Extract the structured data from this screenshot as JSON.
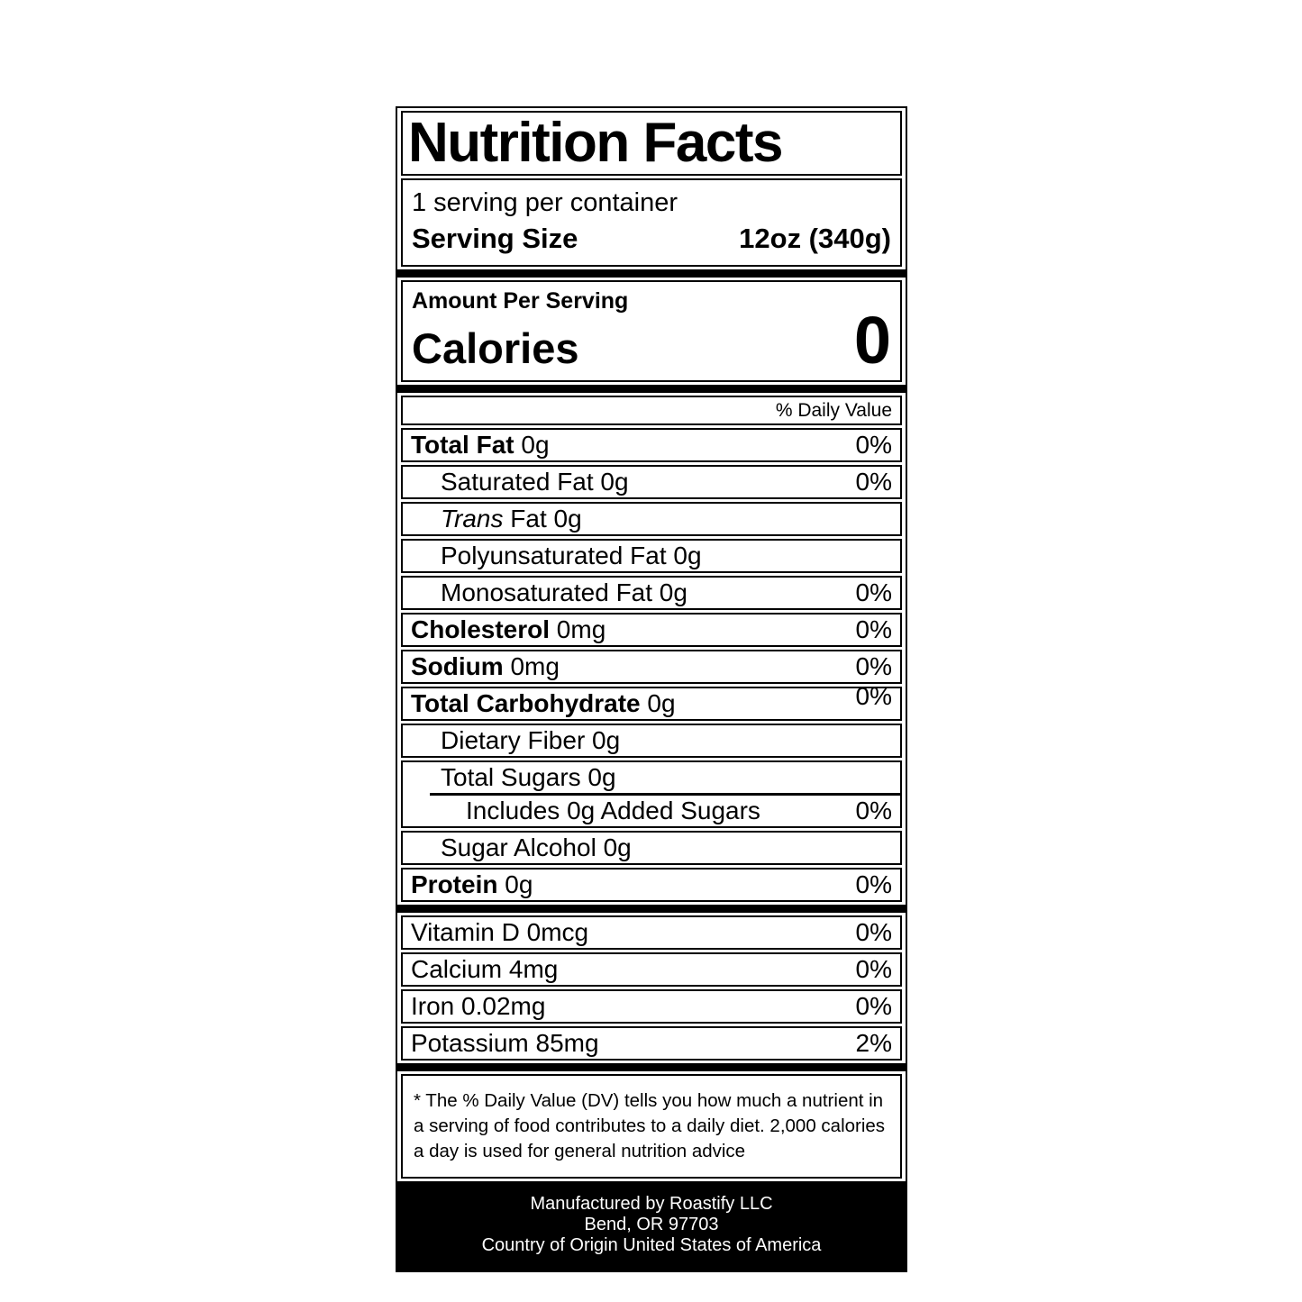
{
  "colors": {
    "ink": "#000000",
    "paper": "#ffffff"
  },
  "label": {
    "title": "Nutrition Facts",
    "servings_per_container": "1 serving per container",
    "serving_size_label": "Serving Size",
    "serving_size_value": "12oz (340g)",
    "amount_per_serving": "Amount Per Serving",
    "calories_label": "Calories",
    "calories_value": "0",
    "daily_value_header": "% Daily Value",
    "nutrients": [
      {
        "bold": "Total Fat",
        "text": " 0g",
        "dv": "0%"
      },
      {
        "text": "Saturated Fat 0g",
        "dv": "0%"
      },
      {
        "italic": "Trans",
        "text": " Fat 0g"
      },
      {
        "text": "Polyunsaturated Fat 0g"
      },
      {
        "text": "Monosaturated Fat 0g",
        "dv": "0%"
      },
      {
        "bold": "Cholesterol",
        "text": " 0mg",
        "dv": "0%"
      },
      {
        "bold": "Sodium",
        "text": " 0mg",
        "dv": "0%"
      },
      {
        "bold": "Total Carbohydrate",
        "text": " 0g",
        "dv": "0%"
      },
      {
        "text": "Dietary Fiber 0g"
      },
      {
        "text": "Total Sugars 0g"
      },
      {
        "text": "Includes 0g Added Sugars",
        "dv": "0%"
      },
      {
        "text": "Sugar Alcohol 0g"
      },
      {
        "bold": "Protein",
        "text": " 0g",
        "dv": "0%"
      }
    ],
    "vitamins": [
      {
        "text": "Vitamin D 0mcg",
        "dv": "0%"
      },
      {
        "text": "Calcium 4mg",
        "dv": "0%"
      },
      {
        "text": "Iron 0.02mg",
        "dv": "0%"
      },
      {
        "text": "Potassium 85mg",
        "dv": "2%"
      }
    ],
    "footnote_lines": [
      "* The % Daily Value (DV) tells you how much a nutrient in",
      "a serving of food contributes to a daily diet. 2,000 calories",
      "a day is used for general nutrition advice"
    ],
    "footer_lines": [
      "Manufactured by Roastify LLC",
      "Bend, OR 97703",
      "Country of Origin United States of America"
    ]
  }
}
